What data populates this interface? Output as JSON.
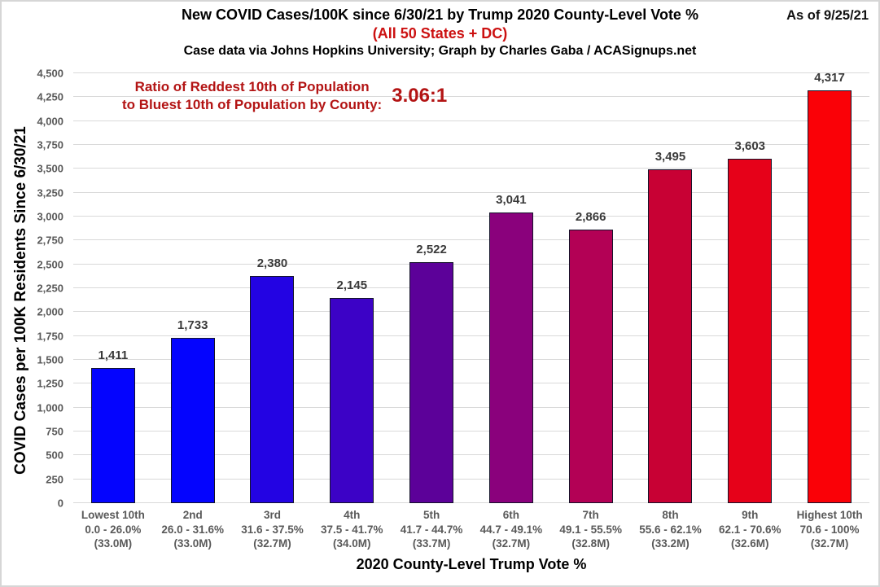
{
  "header": {
    "title": "New COVID Cases/100K since 6/30/21 by Trump 2020 County-Level Vote %",
    "subtitle": "(All 50 States + DC)",
    "credit": "Case data via Johns Hopkins University; Graph by Charles Gaba / ACASignups.net",
    "as_of": "As of 9/25/21"
  },
  "annotation": {
    "line1": "Ratio of Reddest 10th of Population",
    "line2": "to Bluest 10th of Population by County:",
    "ratio": "3.06:1",
    "color": "#b31414"
  },
  "chart_data": {
    "type": "bar",
    "title": "New COVID Cases/100K since 6/30/21 by Trump 2020 County-Level Vote %",
    "subtitle": "(All 50 States + DC)",
    "xlabel": "2020 County-Level Trump Vote %",
    "ylabel": "COVID Cases per 100K Residents Since 6/30/21",
    "ylim": [
      0,
      4500
    ],
    "ytick_step": 250,
    "grid": true,
    "legend": "none",
    "categories": [
      "Lowest 10th",
      "2nd",
      "3rd",
      "4th",
      "5th",
      "6th",
      "7th",
      "8th",
      "9th",
      "Highest 10th"
    ],
    "category_ranges": [
      "0.0 - 26.0%",
      "26.0 - 31.6%",
      "31.6 - 37.5%",
      "37.5 - 41.7%",
      "41.7 - 44.7%",
      "44.7 - 49.1%",
      "49.1 - 55.5%",
      "55.6 - 62.1%",
      "62.1 - 70.6%",
      "70.6 - 100%"
    ],
    "category_populations": [
      "(33.0M)",
      "(33.0M)",
      "(32.7M)",
      "(34.0M)",
      "(33.7M)",
      "(32.7M)",
      "(32.8M)",
      "(33.2M)",
      "(32.6M)",
      "(32.7M)"
    ],
    "values": [
      1411,
      1733,
      2380,
      2145,
      2522,
      3041,
      2866,
      3495,
      3603,
      4317
    ],
    "value_labels": [
      "1,411",
      "1,733",
      "2,380",
      "2,145",
      "2,522",
      "3,041",
      "2,866",
      "3,495",
      "3,603",
      "4,317"
    ],
    "bar_colors": [
      "#0404fe",
      "#0404fe",
      "#2303e3",
      "#3c02c6",
      "#5c0199",
      "#8a017c",
      "#b30155",
      "#c80134",
      "#e60119",
      "#fa0107"
    ],
    "ytick_labels": [
      "0",
      "250",
      "500",
      "750",
      "1,000",
      "1,250",
      "1,500",
      "1,750",
      "2,000",
      "2,250",
      "2,500",
      "2,750",
      "3,000",
      "3,250",
      "3,500",
      "3,750",
      "4,000",
      "4,250",
      "4,500"
    ],
    "gridline_color": "#d9d9d9",
    "axis_label_color": "#595959",
    "value_label_color": "#3a3a3a"
  }
}
